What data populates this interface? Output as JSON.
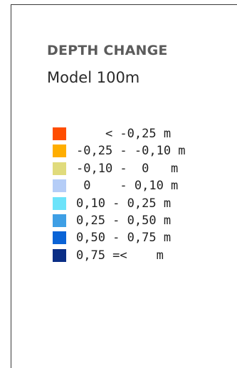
{
  "legend": {
    "title": "DEPTH CHANGE",
    "subtitle": "Model 100m",
    "items": [
      {
        "label": "    < -0,25 m",
        "color": "#ff4d00"
      },
      {
        "label": "-0,25 - -0,10 m",
        "color": "#ffae00"
      },
      {
        "label": "-0,10 -  0   m",
        "color": "#e0db7c"
      },
      {
        "label": " 0    - 0,10 m",
        "color": "#b5cdf7"
      },
      {
        "label": "0,10 - 0,25 m",
        "color": "#6ce3fa"
      },
      {
        "label": "0,25 - 0,50 m",
        "color": "#3e9fe5"
      },
      {
        "label": "0,50 - 0,75 m",
        "color": "#0a63d6"
      },
      {
        "label": "0,75 =<    m",
        "color": "#0a2e86"
      }
    ]
  }
}
